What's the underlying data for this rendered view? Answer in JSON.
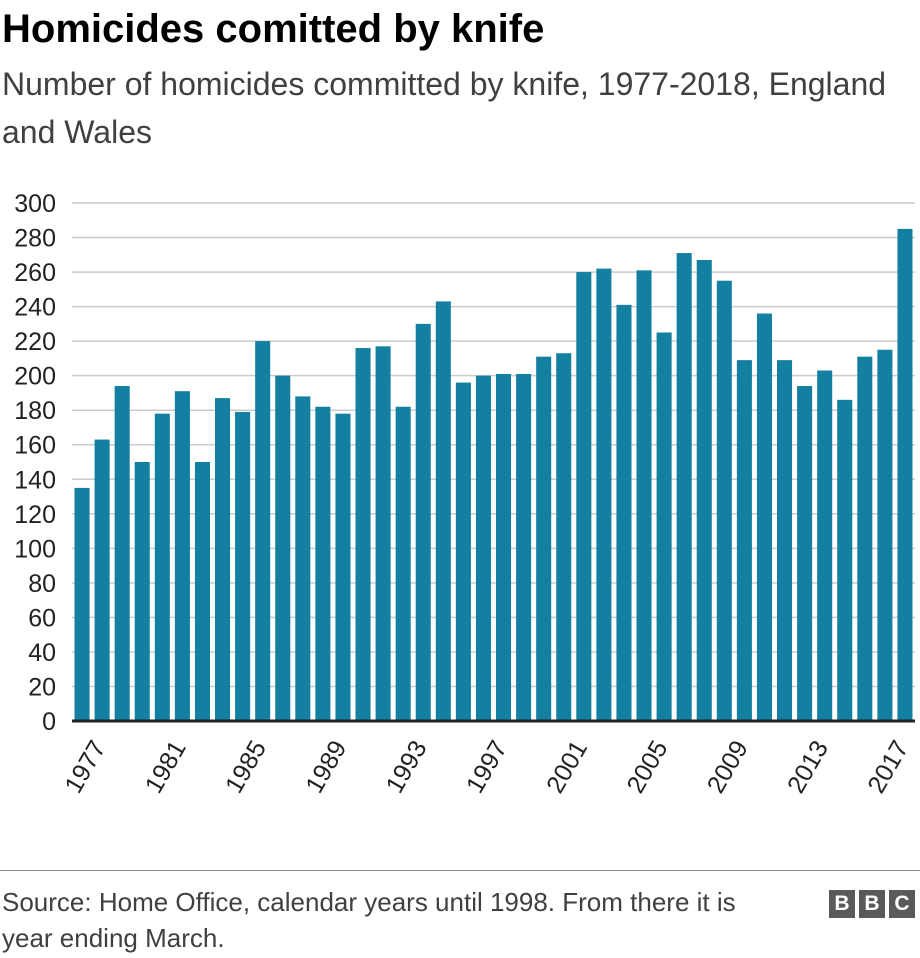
{
  "title": "Homicides comitted by knife",
  "subtitle": "Number of homicides committed by knife, 1977-2018, England and Wales",
  "source": "Source: Home Office, calendar years until 1998. From there it is year ending March.",
  "logo": [
    "B",
    "B",
    "C"
  ],
  "colors": {
    "bar": "#1380a1",
    "grid": "#cbcbcb",
    "axis": "#222222"
  },
  "chart_data": {
    "type": "bar",
    "title": "Homicides comitted by knife",
    "xlabel": "",
    "ylabel": "",
    "ylim": [
      0,
      300
    ],
    "yticks": [
      0,
      20,
      40,
      60,
      80,
      100,
      120,
      140,
      160,
      180,
      200,
      220,
      240,
      260,
      280,
      300
    ],
    "categories": [
      "1977",
      "1978",
      "1979",
      "1980",
      "1981",
      "1982",
      "1983",
      "1984",
      "1985",
      "1986",
      "1987",
      "1988",
      "1989",
      "1990",
      "1991",
      "1992",
      "1993",
      "1994",
      "1995",
      "1996",
      "1997",
      "1998",
      "1999",
      "2000",
      "2001",
      "2002",
      "2003",
      "2004",
      "2005",
      "2006",
      "2007",
      "2008",
      "2009",
      "2010",
      "2011",
      "2012",
      "2013",
      "2014",
      "2015",
      "2016",
      "2017",
      "2018"
    ],
    "xtick_labels": [
      "1977",
      "1981",
      "1985",
      "1989",
      "1993",
      "1997",
      "2001",
      "2005",
      "2009",
      "2013",
      "2017"
    ],
    "values": [
      135,
      163,
      194,
      150,
      178,
      191,
      150,
      187,
      179,
      220,
      200,
      188,
      182,
      178,
      216,
      217,
      182,
      230,
      243,
      196,
      200,
      201,
      201,
      211,
      213,
      260,
      262,
      241,
      261,
      225,
      271,
      267,
      255,
      209,
      236,
      209,
      194,
      203,
      186,
      211,
      215,
      285
    ],
    "grid": true
  }
}
